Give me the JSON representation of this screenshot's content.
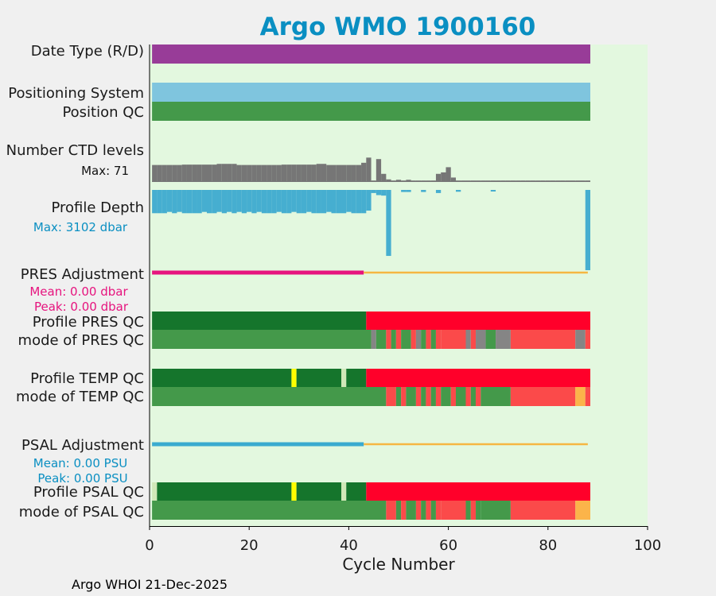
{
  "chart_data": {
    "type": "bar",
    "title": "Argo WMO 1900160",
    "xlabel": "Cycle Number",
    "xlim": [
      0,
      100
    ],
    "xticks": [
      0,
      20,
      40,
      60,
      80,
      100
    ],
    "xticklabels": [
      "0",
      "20",
      "40",
      "60",
      "80",
      "100"
    ],
    "footer": "Argo WHOI 21-Dec-2025",
    "colors": {
      "title": "#0a8fc2",
      "background": "#e3f8df",
      "purple": "#983c98",
      "lightblue": "#7fc5de",
      "green": "#44994a",
      "darkgreen": "#15752c",
      "red": "#ff002a",
      "lightred": "#fb4a4a",
      "gray": "#858585",
      "yellow": "#ffff00",
      "orange": "#fbb44a",
      "paleyellow": "#d0e8b8",
      "ctd": "#767676",
      "depth": "#46aed0",
      "pink": "#e6147e",
      "psal": "#3aabcf",
      "adjline": "#f5b742"
    },
    "rows": [
      {
        "label": "Date Type (R/D)",
        "segments": [
          [
            0.5,
            88.5,
            "purple"
          ]
        ]
      },
      {
        "label": "Positioning System",
        "segments": [
          [
            0.5,
            88.5,
            "lightblue"
          ]
        ]
      },
      {
        "label": "Position QC",
        "segments": [
          [
            0.5,
            88.5,
            "green"
          ]
        ]
      },
      {
        "label": "Profile PRES QC",
        "segments": [
          [
            0.5,
            43.5,
            "darkgreen"
          ],
          [
            43.5,
            88.5,
            "red"
          ]
        ]
      },
      {
        "label": "mode of PRES QC",
        "segments": [
          [
            0.5,
            44.5,
            "green"
          ],
          [
            44.5,
            45.5,
            "gray"
          ],
          [
            45.5,
            47.5,
            "green"
          ],
          [
            47.5,
            48.5,
            "lightred"
          ],
          [
            48.5,
            49.5,
            "green"
          ],
          [
            49.5,
            50.5,
            "lightred"
          ],
          [
            50.5,
            52.5,
            "green"
          ],
          [
            52.5,
            53.5,
            "lightred"
          ],
          [
            53.5,
            54.5,
            "gray"
          ],
          [
            54.5,
            55.5,
            "green"
          ],
          [
            55.5,
            56.5,
            "lightred"
          ],
          [
            56.5,
            57.5,
            "green"
          ],
          [
            57.5,
            58.5,
            "lightred"
          ],
          [
            58.5,
            63.5,
            "lightred"
          ],
          [
            63.5,
            64.5,
            "gray"
          ],
          [
            64.5,
            65.5,
            "lightred"
          ],
          [
            65.5,
            67.5,
            "gray"
          ],
          [
            67.5,
            69.5,
            "green"
          ],
          [
            69.5,
            72.5,
            "gray"
          ],
          [
            72.5,
            85.5,
            "lightred"
          ],
          [
            85.5,
            87.5,
            "gray"
          ],
          [
            87.5,
            88.5,
            "lightred"
          ]
        ]
      },
      {
        "label": "Profile TEMP QC",
        "segments": [
          [
            0.5,
            28.5,
            "darkgreen"
          ],
          [
            28.5,
            29.5,
            "yellow"
          ],
          [
            29.5,
            38.5,
            "darkgreen"
          ],
          [
            38.5,
            39.5,
            "paleyellow"
          ],
          [
            39.5,
            43.5,
            "darkgreen"
          ],
          [
            43.5,
            88.5,
            "red"
          ]
        ]
      },
      {
        "label": "mode of TEMP QC",
        "segments": [
          [
            0.5,
            47.5,
            "green"
          ],
          [
            47.5,
            49.5,
            "lightred"
          ],
          [
            49.5,
            50.5,
            "green"
          ],
          [
            50.5,
            51.5,
            "lightred"
          ],
          [
            51.5,
            53.5,
            "green"
          ],
          [
            53.5,
            54.5,
            "lightred"
          ],
          [
            54.5,
            55.5,
            "green"
          ],
          [
            55.5,
            56.5,
            "lightred"
          ],
          [
            56.5,
            57.5,
            "green"
          ],
          [
            57.5,
            58.5,
            "lightred"
          ],
          [
            58.5,
            60.5,
            "green"
          ],
          [
            60.5,
            61.5,
            "lightred"
          ],
          [
            61.5,
            63.5,
            "green"
          ],
          [
            63.5,
            64.5,
            "lightred"
          ],
          [
            64.5,
            65.5,
            "green"
          ],
          [
            65.5,
            66.5,
            "lightred"
          ],
          [
            66.5,
            72.5,
            "green"
          ],
          [
            72.5,
            85.5,
            "lightred"
          ],
          [
            85.5,
            87.5,
            "orange"
          ],
          [
            87.5,
            88.5,
            "lightred"
          ]
        ]
      },
      {
        "label": "Profile PSAL QC",
        "segments": [
          [
            0.5,
            1.5,
            "paleyellow"
          ],
          [
            1.5,
            28.5,
            "darkgreen"
          ],
          [
            28.5,
            29.5,
            "yellow"
          ],
          [
            29.5,
            38.5,
            "darkgreen"
          ],
          [
            38.5,
            39.5,
            "paleyellow"
          ],
          [
            39.5,
            43.5,
            "darkgreen"
          ],
          [
            43.5,
            88.5,
            "red"
          ]
        ]
      },
      {
        "label": "mode of PSAL QC",
        "segments": [
          [
            0.5,
            47.5,
            "green"
          ],
          [
            47.5,
            49.5,
            "lightred"
          ],
          [
            49.5,
            50.5,
            "green"
          ],
          [
            50.5,
            51.5,
            "lightred"
          ],
          [
            51.5,
            53.5,
            "green"
          ],
          [
            53.5,
            54.5,
            "lightred"
          ],
          [
            54.5,
            55.5,
            "green"
          ],
          [
            55.5,
            56.5,
            "lightred"
          ],
          [
            56.5,
            57.5,
            "green"
          ],
          [
            57.5,
            58.5,
            "lightred"
          ],
          [
            58.5,
            63.5,
            "lightred"
          ],
          [
            63.5,
            64.5,
            "green"
          ],
          [
            64.5,
            65.5,
            "lightred"
          ],
          [
            65.5,
            66.5,
            "green"
          ],
          [
            66.5,
            72.5,
            "green"
          ],
          [
            72.5,
            85.5,
            "lightred"
          ],
          [
            85.5,
            88.5,
            "orange"
          ]
        ]
      }
    ],
    "ctd": {
      "label": "Number CTD levels",
      "max_label": "Max: 71",
      "max": 71,
      "cycles": [
        1,
        2,
        3,
        4,
        5,
        6,
        7,
        8,
        9,
        10,
        11,
        12,
        13,
        14,
        15,
        16,
        17,
        18,
        19,
        20,
        21,
        22,
        23,
        24,
        25,
        26,
        27,
        28,
        29,
        30,
        31,
        32,
        33,
        34,
        35,
        36,
        37,
        38,
        39,
        40,
        41,
        42,
        43,
        44,
        45,
        46,
        47,
        48,
        49,
        50,
        51,
        52,
        53,
        54,
        55,
        56,
        57,
        58,
        59,
        60,
        61,
        62,
        63,
        64,
        65,
        66,
        67,
        68,
        69,
        70,
        71,
        72,
        73,
        74,
        75,
        76,
        77,
        78,
        79,
        80,
        81,
        82,
        83,
        84,
        85,
        86,
        87,
        88
      ],
      "values": [
        46,
        46,
        46,
        46,
        46,
        46,
        47,
        47,
        47,
        47,
        47,
        47,
        47,
        49,
        49,
        49,
        49,
        46,
        46,
        46,
        46,
        46,
        46,
        46,
        46,
        46,
        47,
        47,
        47,
        47,
        47,
        47,
        47,
        49,
        49,
        46,
        46,
        46,
        46,
        46,
        46,
        46,
        52,
        66,
        4,
        62,
        22,
        7,
        4,
        6,
        4,
        6,
        4,
        4,
        4,
        4,
        4,
        22,
        26,
        40,
        12,
        4,
        4,
        4,
        4,
        4,
        4,
        4,
        4,
        4,
        4,
        4,
        4,
        4,
        4,
        4,
        4,
        4,
        4,
        4,
        4,
        4,
        4,
        4,
        4,
        4,
        4,
        4
      ]
    },
    "depth": {
      "label": "Profile Depth",
      "max_label": "Max: 3102 dbar",
      "max": 3102,
      "cycles": [
        1,
        2,
        3,
        4,
        5,
        6,
        7,
        8,
        9,
        10,
        11,
        12,
        13,
        14,
        15,
        16,
        17,
        18,
        19,
        20,
        21,
        22,
        23,
        24,
        25,
        26,
        27,
        28,
        29,
        30,
        31,
        32,
        33,
        34,
        35,
        36,
        37,
        38,
        39,
        40,
        41,
        42,
        43,
        44,
        45,
        46,
        47,
        48,
        51,
        52,
        55,
        58,
        62,
        69,
        88
      ],
      "values": [
        900,
        900,
        900,
        850,
        900,
        850,
        900,
        900,
        900,
        900,
        850,
        900,
        900,
        850,
        900,
        850,
        900,
        850,
        900,
        850,
        900,
        850,
        900,
        900,
        900,
        850,
        900,
        900,
        850,
        900,
        900,
        850,
        900,
        900,
        900,
        850,
        900,
        900,
        900,
        850,
        900,
        900,
        900,
        800,
        120,
        200,
        220,
        2550,
        80,
        80,
        80,
        120,
        70,
        60,
        3102
      ]
    },
    "pres_adj": {
      "label": "PRES Adjustment",
      "mean_label": "Mean: 0.00 dbar",
      "peak_label": "Peak: 0.00 dbar",
      "adjusted_range": [
        0.5,
        43.0
      ],
      "unadjusted_range": [
        43.0,
        88.0
      ]
    },
    "psal_adj": {
      "label": "PSAL Adjustment",
      "mean_label": "Mean: 0.00 PSU",
      "peak_label": "Peak: 0.00 PSU",
      "adjusted_range": [
        0.5,
        43.0
      ],
      "unadjusted_range": [
        43.0,
        88.0
      ]
    }
  }
}
